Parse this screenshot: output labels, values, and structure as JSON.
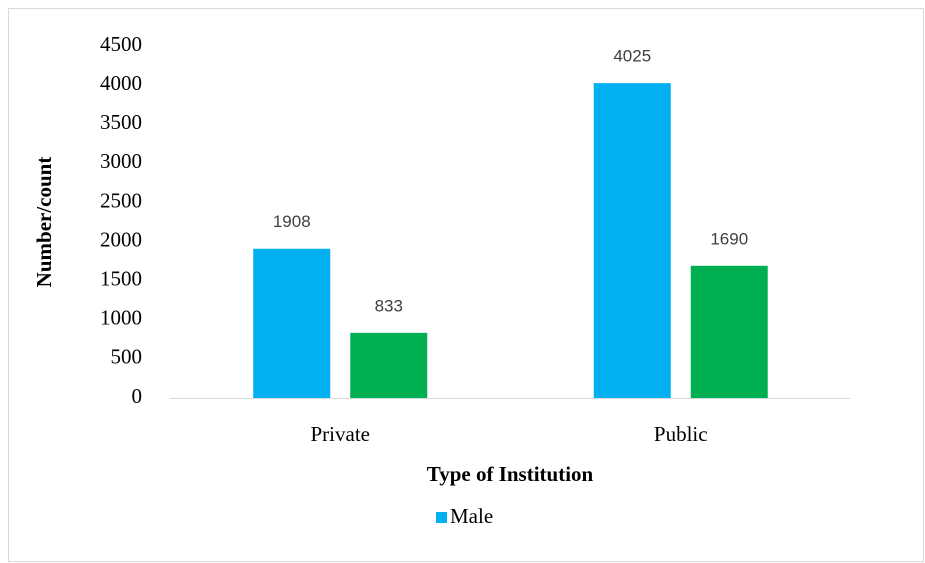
{
  "chart_data": {
    "type": "bar",
    "x_label": "Type of Institution",
    "y_label": "Number/count",
    "categories": [
      "Private",
      "Public"
    ],
    "series": [
      {
        "name": "Male",
        "color": "#00b0f0",
        "values": [
          1908,
          4025
        ]
      },
      {
        "color": "#00b050",
        "values": [
          833,
          1690
        ]
      }
    ],
    "ylim": [
      0,
      4500
    ],
    "yticks": [
      0,
      500,
      1000,
      1500,
      2000,
      2500,
      3000,
      3500,
      4000,
      4500
    ],
    "grid": false,
    "legend": "bottom"
  }
}
